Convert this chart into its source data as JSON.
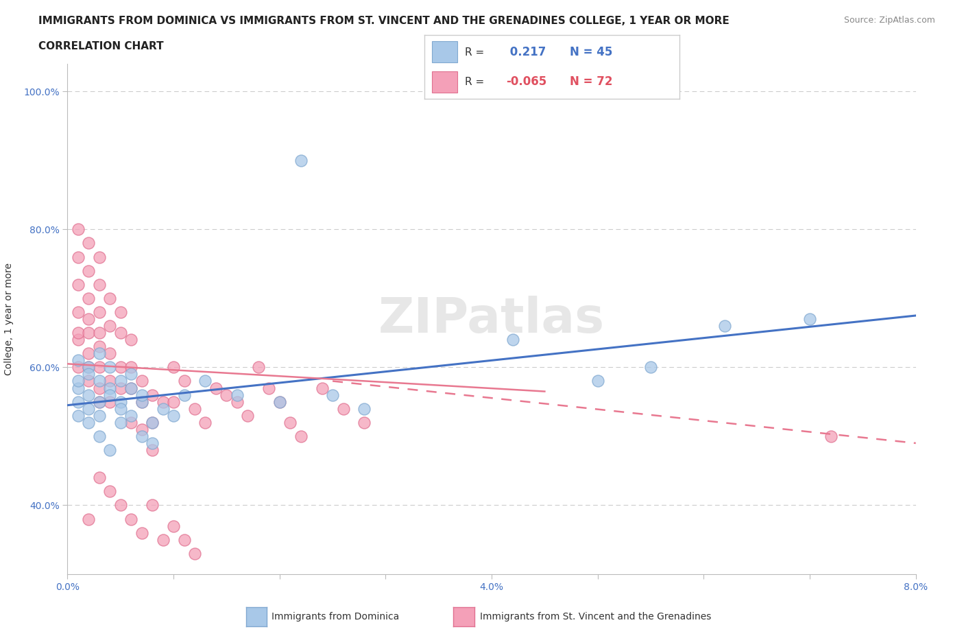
{
  "title_line1": "IMMIGRANTS FROM DOMINICA VS IMMIGRANTS FROM ST. VINCENT AND THE GRENADINES COLLEGE, 1 YEAR OR MORE",
  "title_line2": "CORRELATION CHART",
  "source_text": "Source: ZipAtlas.com",
  "ylabel": "College, 1 year or more",
  "xlim": [
    0.0,
    0.08
  ],
  "ylim": [
    0.3,
    1.04
  ],
  "ytick_positions": [
    0.4,
    0.6,
    0.8,
    1.0
  ],
  "yticklabels": [
    "40.0%",
    "60.0%",
    "80.0%",
    "100.0%"
  ],
  "xtick_positions": [
    0.0,
    0.01,
    0.02,
    0.03,
    0.04,
    0.05,
    0.06,
    0.07,
    0.08
  ],
  "xticklabels": [
    "0.0%",
    "",
    "",
    "",
    "4.0%",
    "",
    "",
    "",
    "8.0%"
  ],
  "dominica_R": 0.217,
  "dominica_N": 45,
  "stvincent_R": -0.065,
  "stvincent_N": 72,
  "dominica_color": "#a8c8e8",
  "stvincent_color": "#f4a0b8",
  "dominica_edge_color": "#80a8d0",
  "stvincent_edge_color": "#e07090",
  "dominica_line_color": "#4472c4",
  "stvincent_line_color": "#e87890",
  "legend_label1": "Immigrants from Dominica",
  "legend_label2": "Immigrants from St. Vincent and the Grenadines",
  "dominica_x": [
    0.001,
    0.001,
    0.001,
    0.001,
    0.001,
    0.002,
    0.002,
    0.002,
    0.002,
    0.002,
    0.003,
    0.003,
    0.003,
    0.003,
    0.003,
    0.004,
    0.004,
    0.004,
    0.004,
    0.005,
    0.005,
    0.005,
    0.005,
    0.006,
    0.006,
    0.006,
    0.007,
    0.007,
    0.007,
    0.008,
    0.008,
    0.009,
    0.01,
    0.011,
    0.013,
    0.016,
    0.02,
    0.022,
    0.025,
    0.028,
    0.042,
    0.05,
    0.055,
    0.062,
    0.07
  ],
  "dominica_y": [
    0.57,
    0.55,
    0.61,
    0.58,
    0.53,
    0.6,
    0.56,
    0.54,
    0.59,
    0.52,
    0.58,
    0.55,
    0.62,
    0.5,
    0.53,
    0.57,
    0.56,
    0.48,
    0.6,
    0.55,
    0.52,
    0.58,
    0.54,
    0.59,
    0.53,
    0.57,
    0.5,
    0.55,
    0.56,
    0.52,
    0.49,
    0.54,
    0.53,
    0.56,
    0.58,
    0.56,
    0.55,
    0.9,
    0.56,
    0.54,
    0.64,
    0.58,
    0.6,
    0.66,
    0.67
  ],
  "stvincent_x": [
    0.001,
    0.001,
    0.001,
    0.001,
    0.001,
    0.001,
    0.001,
    0.002,
    0.002,
    0.002,
    0.002,
    0.002,
    0.002,
    0.002,
    0.002,
    0.003,
    0.003,
    0.003,
    0.003,
    0.003,
    0.003,
    0.003,
    0.003,
    0.004,
    0.004,
    0.004,
    0.004,
    0.004,
    0.005,
    0.005,
    0.005,
    0.005,
    0.006,
    0.006,
    0.006,
    0.006,
    0.007,
    0.007,
    0.007,
    0.008,
    0.008,
    0.008,
    0.009,
    0.01,
    0.01,
    0.011,
    0.012,
    0.013,
    0.014,
    0.015,
    0.016,
    0.017,
    0.018,
    0.019,
    0.02,
    0.021,
    0.022,
    0.024,
    0.026,
    0.028,
    0.003,
    0.004,
    0.002,
    0.005,
    0.006,
    0.007,
    0.008,
    0.009,
    0.01,
    0.011,
    0.012,
    0.072
  ],
  "stvincent_y": [
    0.6,
    0.64,
    0.68,
    0.72,
    0.76,
    0.8,
    0.65,
    0.62,
    0.67,
    0.7,
    0.74,
    0.78,
    0.58,
    0.65,
    0.6,
    0.63,
    0.68,
    0.72,
    0.76,
    0.6,
    0.57,
    0.55,
    0.65,
    0.7,
    0.66,
    0.62,
    0.58,
    0.55,
    0.68,
    0.65,
    0.6,
    0.57,
    0.64,
    0.6,
    0.57,
    0.52,
    0.58,
    0.55,
    0.51,
    0.56,
    0.52,
    0.48,
    0.55,
    0.6,
    0.55,
    0.58,
    0.54,
    0.52,
    0.57,
    0.56,
    0.55,
    0.53,
    0.6,
    0.57,
    0.55,
    0.52,
    0.5,
    0.57,
    0.54,
    0.52,
    0.44,
    0.42,
    0.38,
    0.4,
    0.38,
    0.36,
    0.4,
    0.35,
    0.37,
    0.35,
    0.33,
    0.5
  ]
}
